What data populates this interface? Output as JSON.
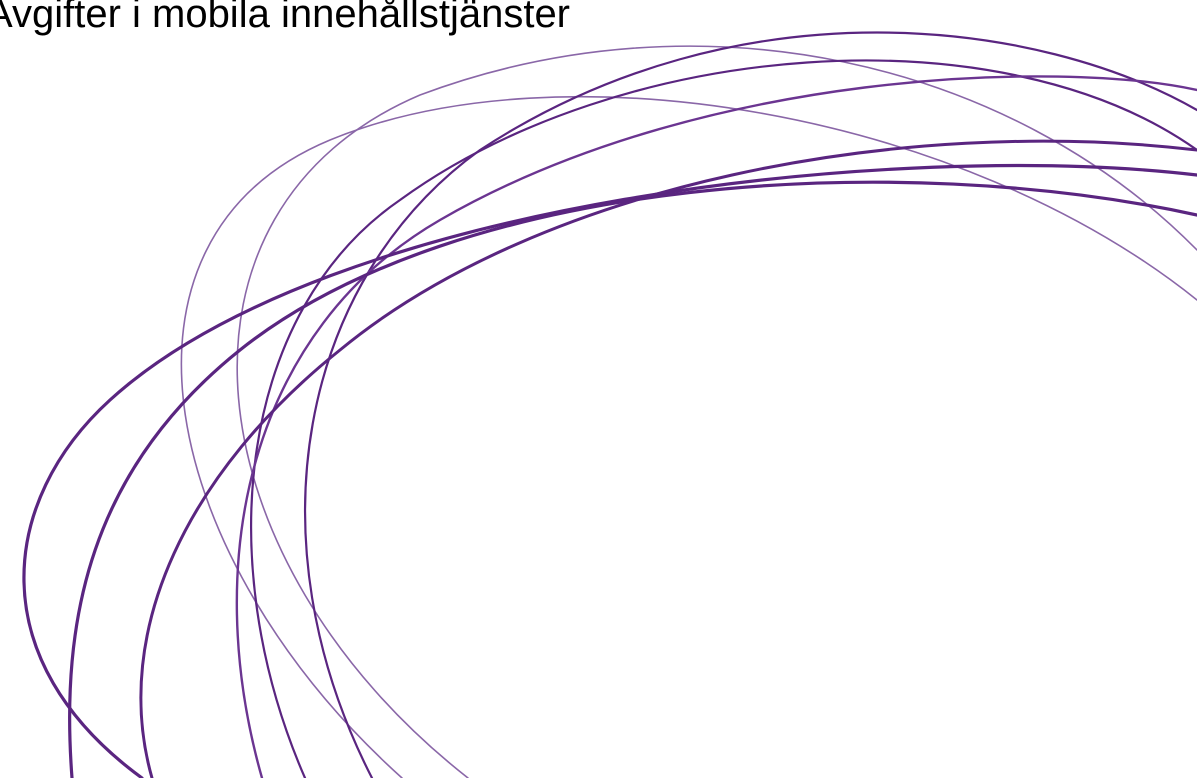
{
  "slide": {
    "title": "Avgifter i mobila innehållstjänster"
  },
  "decoration": {
    "icon": "swirl-rings-graphic",
    "stroke_colors": [
      "#5a2580",
      "#6b3591",
      "#8a67a8"
    ]
  }
}
